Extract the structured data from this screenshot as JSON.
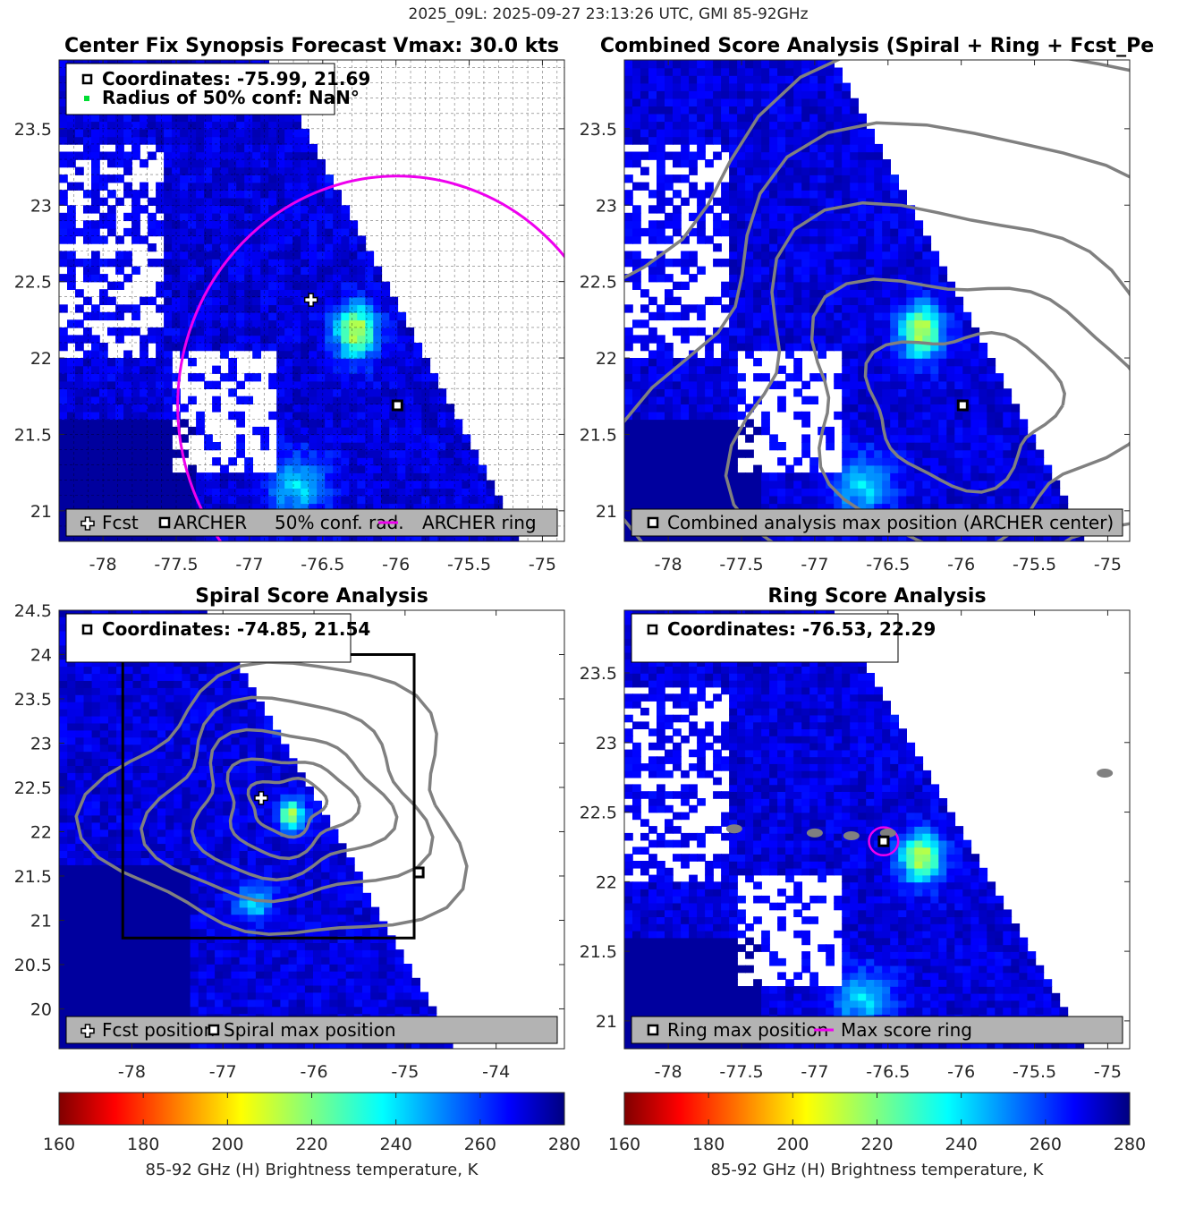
{
  "figure": {
    "suptitle": "2025_09L: 2025-09-27 23:13:26 UTC, GMI 85-92GHz"
  },
  "colors": {
    "ring_magenta": "#ee00ee",
    "contour_gray": "#808080",
    "legend_gray": "#b3b3b3",
    "no_data": "#ffffff"
  },
  "chart_data": [
    {
      "id": "center_fix",
      "type": "heatmap",
      "title": "Center Fix Synopsis     Forecast Vmax: 30.0 kts",
      "xlim": [
        -78.3,
        -74.85
      ],
      "ylim": [
        20.8,
        23.95
      ],
      "x_ticks": [
        -78,
        -77.5,
        -77,
        -76.5,
        -76,
        -75.5,
        -75
      ],
      "x_tick_labels": [
        "-78",
        "-77.5",
        "-77",
        "-76.5",
        "-76",
        "-75.5",
        "-75"
      ],
      "y_ticks": [
        21,
        21.5,
        22,
        22.5,
        23,
        23.5
      ],
      "y_tick_labels": [
        "21",
        "21.5",
        "22",
        "22.5",
        "23",
        "23.5"
      ],
      "grid": true,
      "info_lines": [
        "Coordinates: -75.99, 21.69",
        "Radius of 50% conf: NaN°"
      ],
      "legend_labels": [
        "Fcst",
        "ARCHER",
        "50% conf. rad.",
        "ARCHER ring"
      ],
      "fcst_position": [
        -76.58,
        22.38
      ],
      "archer_position": [
        -75.99,
        21.69
      ],
      "ring_center": [
        -75.99,
        21.69
      ],
      "ring_radius_deg": 1.5,
      "warm_spot": [
        -76.3,
        22.15
      ]
    },
    {
      "id": "combined",
      "type": "heatmap",
      "title": "Combined Score Analysis (Spiral + Ring + Fcst_Pe",
      "xlim": [
        -78.3,
        -74.85
      ],
      "ylim": [
        20.8,
        23.95
      ],
      "x_ticks": [
        -78,
        -77.5,
        -77,
        -76.5,
        -76,
        -75.5,
        -75
      ],
      "x_tick_labels": [
        "-78",
        "-77.5",
        "-77",
        "-76.5",
        "-76",
        "-75.5",
        "-75"
      ],
      "y_ticks": [
        21,
        21.5,
        22,
        22.5,
        23,
        23.5
      ],
      "y_tick_labels": [
        "21",
        "21.5",
        "22",
        "22.5",
        "23",
        "23.5"
      ],
      "grid": false,
      "legend_labels": [
        "Combined analysis max position (ARCHER center)"
      ],
      "max_position": [
        -75.99,
        21.69
      ],
      "warm_spot": [
        -76.3,
        22.15
      ]
    },
    {
      "id": "spiral",
      "type": "heatmap",
      "title": "Spiral Score Analysis",
      "xlim": [
        -78.8,
        -73.25
      ],
      "ylim": [
        19.55,
        24.5
      ],
      "x_ticks": [
        -78,
        -77,
        -76,
        -75,
        -74
      ],
      "x_tick_labels": [
        "-78",
        "-77",
        "-76",
        "-75",
        "-74"
      ],
      "y_ticks": [
        20,
        20.5,
        21,
        21.5,
        22,
        22.5,
        23,
        23.5,
        24,
        24.5
      ],
      "y_tick_labels": [
        "20",
        "20.5",
        "21",
        "21.5",
        "22",
        "22.5",
        "23",
        "23.5",
        "24",
        "24.5"
      ],
      "grid": false,
      "info_lines": [
        "Coordinates: -74.85, 21.54"
      ],
      "legend_labels": [
        "Fcst position",
        "Spiral max position"
      ],
      "fcst_position": [
        -76.58,
        22.38
      ],
      "spiral_max_position": [
        -74.85,
        21.54
      ],
      "search_box": [
        [
          -78.1,
          20.8
        ],
        [
          -74.9,
          24.0
        ]
      ],
      "warm_spot": [
        -76.3,
        22.15
      ]
    },
    {
      "id": "ring",
      "type": "heatmap",
      "title": "Ring Score Analysis",
      "xlim": [
        -78.3,
        -74.85
      ],
      "ylim": [
        20.8,
        23.95
      ],
      "x_ticks": [
        -78,
        -77.5,
        -77,
        -76.5,
        -76,
        -75.5,
        -75
      ],
      "x_tick_labels": [
        "-78",
        "-77.5",
        "-77",
        "-76.5",
        "-76",
        "-75.5",
        "-75"
      ],
      "y_ticks": [
        21,
        21.5,
        22,
        22.5,
        23,
        23.5
      ],
      "y_tick_labels": [
        "21",
        "21.5",
        "22",
        "22.5",
        "23",
        "23.5"
      ],
      "grid": false,
      "info_lines": [
        "Coordinates: -76.53, 22.29"
      ],
      "legend_labels": [
        "Ring max position",
        "Max score ring"
      ],
      "ring_max_position": [
        -76.53,
        22.29
      ],
      "ring_radius_deg": 0.1,
      "warm_spot": [
        -76.3,
        22.15
      ]
    }
  ],
  "colorbars": [
    {
      "label": "85-92 GHz (H) Brightness temperature, K",
      "range": [
        160,
        280
      ],
      "ticks": [
        160,
        180,
        200,
        220,
        240,
        260,
        280
      ],
      "tick_labels": [
        "160",
        "180",
        "200",
        "220",
        "240",
        "260",
        "280"
      ],
      "colormap": "jet_reversed"
    },
    {
      "label": "85-92 GHz (H) Brightness temperature, K",
      "range": [
        160,
        280
      ],
      "ticks": [
        160,
        180,
        200,
        220,
        240,
        260,
        280
      ],
      "tick_labels": [
        "160",
        "180",
        "200",
        "220",
        "240",
        "260",
        "280"
      ],
      "colormap": "jet_reversed"
    }
  ]
}
